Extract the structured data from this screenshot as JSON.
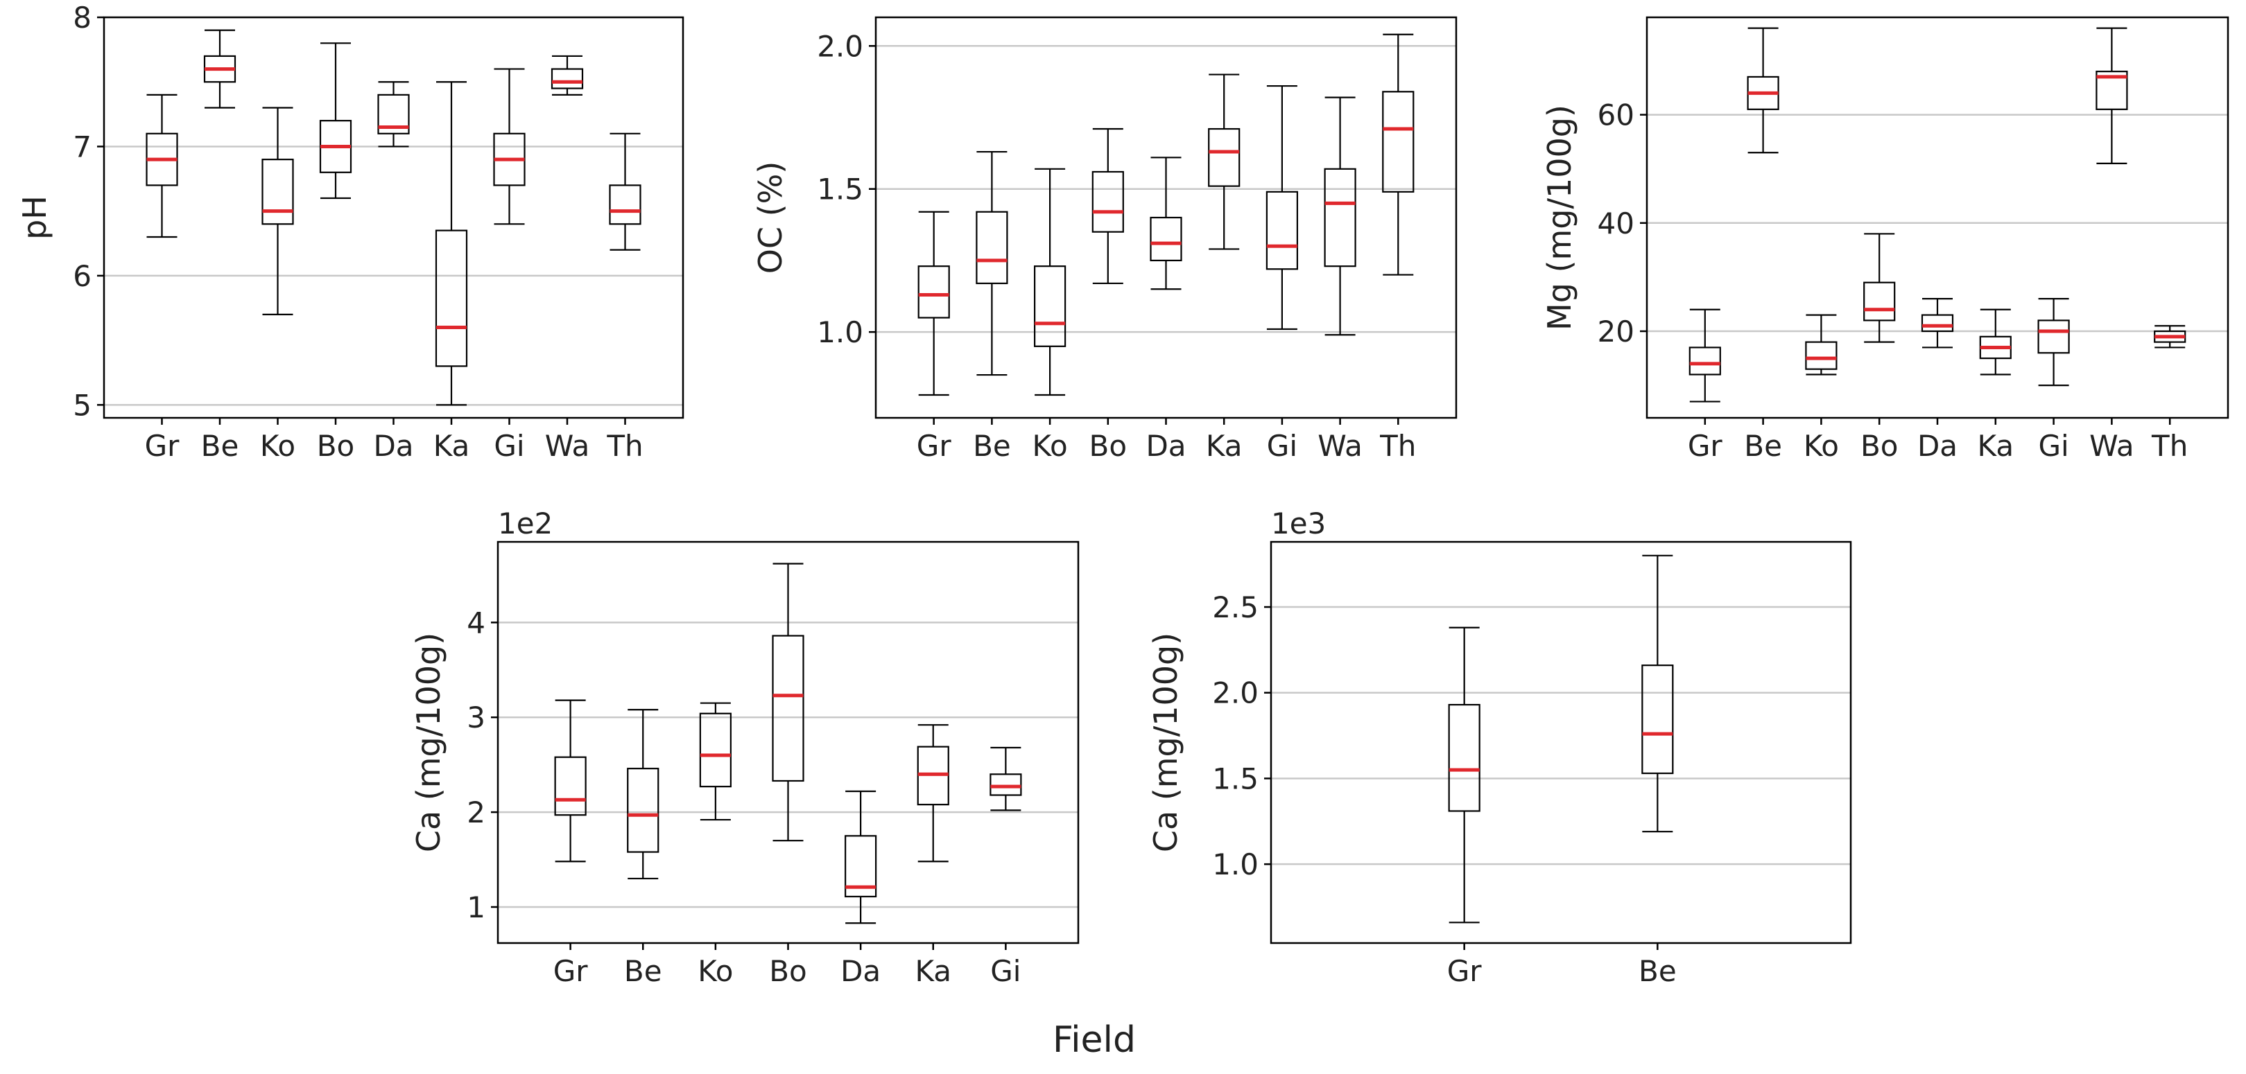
{
  "figure": {
    "xlabel": "Field"
  },
  "colors": {
    "median": "#e0282d",
    "box": "#000000",
    "grid": "#c8c8c8",
    "axis": "#000000"
  },
  "chart_data": [
    {
      "id": "ph",
      "type": "box",
      "ylabel": "pH",
      "ylim": [
        4.9,
        8.0
      ],
      "yticks": [
        5,
        6,
        7,
        8
      ],
      "ytick_labels": [
        "5",
        "6",
        "7",
        "8"
      ],
      "grid": true,
      "scale_label": "",
      "categories": [
        "Gr",
        "Be",
        "Ko",
        "Bo",
        "Da",
        "Ka",
        "Gi",
        "Wa",
        "Th"
      ],
      "boxes": [
        {
          "whislo": 6.3,
          "q1": 6.7,
          "med": 6.9,
          "q3": 7.1,
          "whishi": 7.4
        },
        {
          "whislo": 7.3,
          "q1": 7.5,
          "med": 7.6,
          "q3": 7.7,
          "whishi": 7.9
        },
        {
          "whislo": 5.7,
          "q1": 6.4,
          "med": 6.5,
          "q3": 6.9,
          "whishi": 7.3
        },
        {
          "whislo": 6.6,
          "q1": 6.8,
          "med": 7.0,
          "q3": 7.2,
          "whishi": 7.8
        },
        {
          "whislo": 7.0,
          "q1": 7.1,
          "med": 7.15,
          "q3": 7.4,
          "whishi": 7.5
        },
        {
          "whislo": 5.0,
          "q1": 5.3,
          "med": 5.6,
          "q3": 6.35,
          "whishi": 7.5
        },
        {
          "whislo": 6.4,
          "q1": 6.7,
          "med": 6.9,
          "q3": 7.1,
          "whishi": 7.6
        },
        {
          "whislo": 7.4,
          "q1": 7.45,
          "med": 7.5,
          "q3": 7.6,
          "whishi": 7.7
        },
        {
          "whislo": 6.2,
          "q1": 6.4,
          "med": 6.5,
          "q3": 6.7,
          "whishi": 7.1
        }
      ]
    },
    {
      "id": "oc",
      "type": "box",
      "ylabel": "OC (%)",
      "ylim": [
        0.7,
        2.1
      ],
      "yticks": [
        1.0,
        1.5,
        2.0
      ],
      "ytick_labels": [
        "1.0",
        "1.5",
        "2.0"
      ],
      "grid": true,
      "scale_label": "",
      "categories": [
        "Gr",
        "Be",
        "Ko",
        "Bo",
        "Da",
        "Ka",
        "Gi",
        "Wa",
        "Th"
      ],
      "boxes": [
        {
          "whislo": 0.78,
          "q1": 1.05,
          "med": 1.13,
          "q3": 1.23,
          "whishi": 1.42
        },
        {
          "whislo": 0.85,
          "q1": 1.17,
          "med": 1.25,
          "q3": 1.42,
          "whishi": 1.63
        },
        {
          "whislo": 0.78,
          "q1": 0.95,
          "med": 1.03,
          "q3": 1.23,
          "whishi": 1.57
        },
        {
          "whislo": 1.17,
          "q1": 1.35,
          "med": 1.42,
          "q3": 1.56,
          "whishi": 1.71
        },
        {
          "whislo": 1.15,
          "q1": 1.25,
          "med": 1.31,
          "q3": 1.4,
          "whishi": 1.61
        },
        {
          "whislo": 1.29,
          "q1": 1.51,
          "med": 1.63,
          "q3": 1.71,
          "whishi": 1.9
        },
        {
          "whislo": 1.01,
          "q1": 1.22,
          "med": 1.3,
          "q3": 1.49,
          "whishi": 1.86
        },
        {
          "whislo": 0.99,
          "q1": 1.23,
          "med": 1.45,
          "q3": 1.57,
          "whishi": 1.82
        },
        {
          "whislo": 1.2,
          "q1": 1.49,
          "med": 1.71,
          "q3": 1.84,
          "whishi": 2.04
        }
      ]
    },
    {
      "id": "mg",
      "type": "box",
      "ylabel": "Mg (mg/100g)",
      "ylim": [
        4,
        78
      ],
      "yticks": [
        20,
        40,
        60
      ],
      "ytick_labels": [
        "20",
        "40",
        "60"
      ],
      "grid": true,
      "scale_label": "",
      "categories": [
        "Gr",
        "Be",
        "Ko",
        "Bo",
        "Da",
        "Ka",
        "Gi",
        "Wa",
        "Th"
      ],
      "boxes": [
        {
          "whislo": 7,
          "q1": 12,
          "med": 14,
          "q3": 17,
          "whishi": 24
        },
        {
          "whislo": 53,
          "q1": 61,
          "med": 64,
          "q3": 67,
          "whishi": 76
        },
        {
          "whislo": 12,
          "q1": 13,
          "med": 15,
          "q3": 18,
          "whishi": 23
        },
        {
          "whislo": 18,
          "q1": 22,
          "med": 24,
          "q3": 29,
          "whishi": 38
        },
        {
          "whislo": 17,
          "q1": 20,
          "med": 21,
          "q3": 23,
          "whishi": 26
        },
        {
          "whislo": 12,
          "q1": 15,
          "med": 17,
          "q3": 19,
          "whishi": 24
        },
        {
          "whislo": 10,
          "q1": 16,
          "med": 20,
          "q3": 22,
          "whishi": 26
        },
        {
          "whislo": 51,
          "q1": 61,
          "med": 67,
          "q3": 68,
          "whishi": 76
        },
        {
          "whislo": 17,
          "q1": 18,
          "med": 19,
          "q3": 20,
          "whishi": 21
        }
      ]
    },
    {
      "id": "ca1",
      "type": "box",
      "ylabel": "Ca (mg/100g)",
      "ylim": [
        0.62,
        4.85
      ],
      "yticks": [
        1,
        2,
        3,
        4
      ],
      "ytick_labels": [
        "1",
        "2",
        "3",
        "4"
      ],
      "grid": true,
      "scale_label": "1e2",
      "categories": [
        "Gr",
        "Be",
        "Ko",
        "Bo",
        "Da",
        "Ka",
        "Gi"
      ],
      "boxes": [
        {
          "whislo": 1.48,
          "q1": 1.97,
          "med": 2.13,
          "q3": 2.58,
          "whishi": 3.18
        },
        {
          "whislo": 1.3,
          "q1": 1.58,
          "med": 1.97,
          "q3": 2.46,
          "whishi": 3.08
        },
        {
          "whislo": 1.92,
          "q1": 2.27,
          "med": 2.6,
          "q3": 3.04,
          "whishi": 3.15
        },
        {
          "whislo": 1.7,
          "q1": 2.33,
          "med": 3.23,
          "q3": 3.86,
          "whishi": 4.62
        },
        {
          "whislo": 0.83,
          "q1": 1.11,
          "med": 1.21,
          "q3": 1.75,
          "whishi": 2.22
        },
        {
          "whislo": 1.48,
          "q1": 2.08,
          "med": 2.4,
          "q3": 2.69,
          "whishi": 2.92
        },
        {
          "whislo": 2.02,
          "q1": 2.18,
          "med": 2.27,
          "q3": 2.4,
          "whishi": 2.68
        }
      ]
    },
    {
      "id": "ca2",
      "type": "box",
      "ylabel": "Ca (mg/100g)",
      "ylim": [
        0.54,
        2.88
      ],
      "yticks": [
        1.0,
        1.5,
        2.0,
        2.5
      ],
      "ytick_labels": [
        "1.0",
        "1.5",
        "2.0",
        "2.5"
      ],
      "grid": true,
      "scale_label": "1e3",
      "categories": [
        "Gr",
        "Be"
      ],
      "boxes": [
        {
          "whislo": 0.66,
          "q1": 1.31,
          "med": 1.55,
          "q3": 1.93,
          "whishi": 2.38
        },
        {
          "whislo": 1.19,
          "q1": 1.53,
          "med": 1.76,
          "q3": 2.16,
          "whishi": 2.8
        }
      ]
    }
  ]
}
